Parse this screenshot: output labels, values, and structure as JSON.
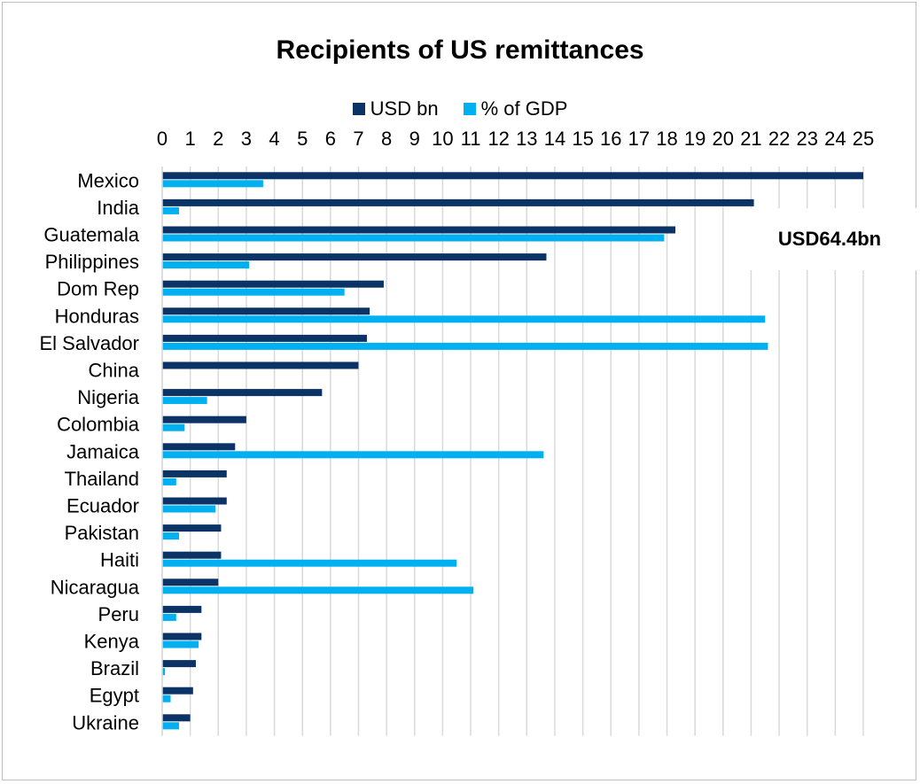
{
  "chart_data": {
    "type": "bar",
    "orientation": "horizontal",
    "title": "Recipients of US remittances",
    "xlim": [
      0,
      25
    ],
    "x_ticks": [
      "0",
      "1",
      "2",
      "3",
      "4",
      "5",
      "6",
      "7",
      "8",
      "9",
      "10",
      "11",
      "12",
      "13",
      "14",
      "15",
      "16",
      "17",
      "18",
      "19",
      "20",
      "21",
      "22",
      "23",
      "24",
      "25"
    ],
    "grid": "vertical",
    "legend_position": "top",
    "categories": [
      "Mexico",
      "India",
      "Guatemala",
      "Philippines",
      "Dom Rep",
      "Honduras",
      "El Salvador",
      "China",
      "Nigeria",
      "Colombia",
      "Jamaica",
      "Thailand",
      "Ecuador",
      "Pakistan",
      "Haiti",
      "Nicaragua",
      "Peru",
      "Kenya",
      "Brazil",
      "Egypt",
      "Ukraine"
    ],
    "series": [
      {
        "name": "USD bn",
        "color": "#0b3366",
        "values": [
          25,
          21.1,
          18.3,
          13.7,
          7.9,
          7.4,
          7.3,
          7.0,
          5.7,
          3.0,
          2.6,
          2.3,
          2.3,
          2.1,
          2.1,
          2.0,
          1.4,
          1.4,
          1.2,
          1.1,
          1.0
        ]
      },
      {
        "name": "% of GDP",
        "color": "#00b0f0",
        "values": [
          3.6,
          0.6,
          17.9,
          3.1,
          6.5,
          21.5,
          21.6,
          0.0,
          1.6,
          0.8,
          13.6,
          0.5,
          1.9,
          0.6,
          10.5,
          11.1,
          0.5,
          1.3,
          0.1,
          0.3,
          0.6
        ]
      }
    ],
    "annotations": [
      "USD64.4bn"
    ]
  },
  "legend": {
    "usd_label": "USD bn",
    "gdp_label": "% of GDP"
  }
}
